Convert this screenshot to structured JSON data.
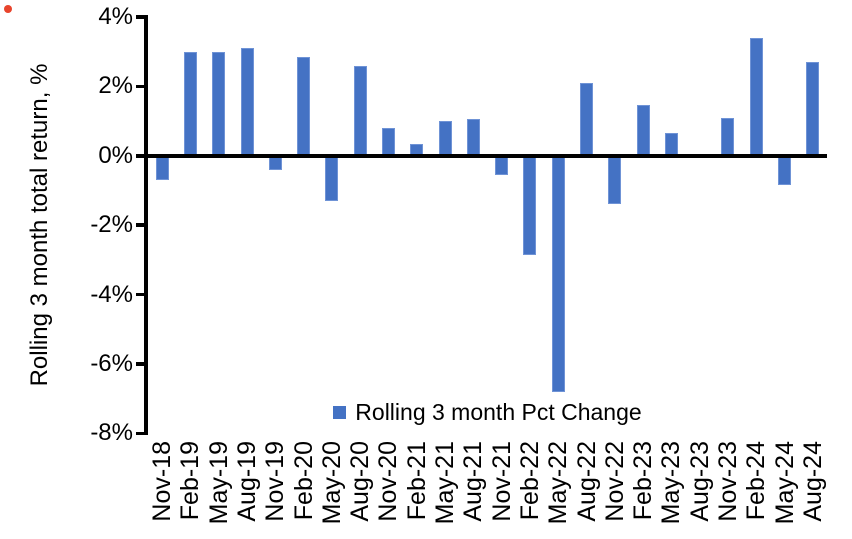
{
  "chart": {
    "bar_color": "#4472C4",
    "axis_color": "#000000",
    "background_color": "#ffffff"
  },
  "chart_data": {
    "type": "bar",
    "title": "",
    "xlabel": "",
    "ylabel": "Rolling 3 month total return, %",
    "legend": [
      "Rolling 3 month Pct Change"
    ],
    "legend_position": "bottom-center-inside",
    "grid": false,
    "ylim": [
      -8,
      4
    ],
    "yticks": [
      4,
      2,
      0,
      -2,
      -4,
      -6,
      -8
    ],
    "ytick_labels": [
      "4%",
      "2%",
      "0%",
      "-2%",
      "-4%",
      "-6%",
      "-8%"
    ],
    "categories": [
      "Nov-18",
      "Feb-19",
      "May-19",
      "Aug-19",
      "Nov-19",
      "Feb-20",
      "May-20",
      "Aug-20",
      "Nov-20",
      "Feb-21",
      "May-21",
      "Aug-21",
      "Nov-21",
      "Feb-22",
      "May-22",
      "Aug-22",
      "Nov-22",
      "Feb-23",
      "May-23",
      "Aug-23",
      "Nov-23",
      "Feb-24",
      "May-24",
      "Aug-24"
    ],
    "values": [
      -0.7,
      3.0,
      3.0,
      3.1,
      -0.4,
      2.85,
      -1.3,
      2.6,
      0.8,
      0.35,
      1.0,
      1.05,
      -0.55,
      -2.85,
      -6.8,
      2.1,
      -1.4,
      1.45,
      0.65,
      0.0,
      1.1,
      3.4,
      -0.85,
      2.7
    ]
  }
}
